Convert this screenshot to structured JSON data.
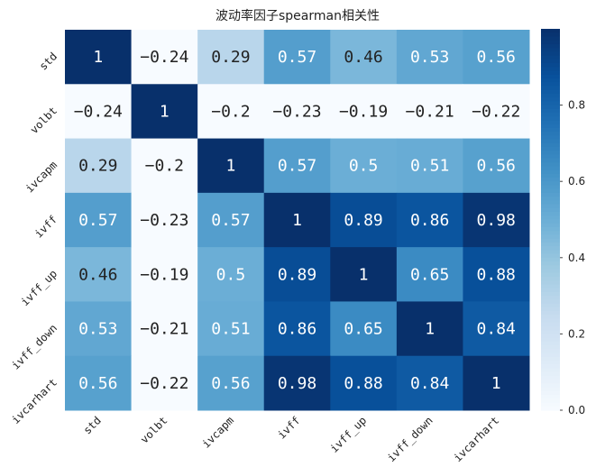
{
  "chart_data": {
    "type": "heatmap",
    "title": "波动率因子spearman相关性",
    "labels": [
      "std",
      "volbt",
      "ivcapm",
      "ivff",
      "ivff_up",
      "ivff_down",
      "ivcarhart"
    ],
    "values": [
      [
        1,
        -0.24,
        0.29,
        0.57,
        0.46,
        0.53,
        0.56
      ],
      [
        -0.24,
        1,
        -0.2,
        -0.23,
        -0.19,
        -0.21,
        -0.22
      ],
      [
        0.29,
        -0.2,
        1,
        0.57,
        0.5,
        0.51,
        0.56
      ],
      [
        0.57,
        -0.23,
        0.57,
        1,
        0.89,
        0.86,
        0.98
      ],
      [
        0.46,
        -0.19,
        0.5,
        0.89,
        1,
        0.65,
        0.88
      ],
      [
        0.53,
        -0.21,
        0.51,
        0.86,
        0.65,
        1,
        0.84
      ],
      [
        0.56,
        -0.22,
        0.56,
        0.98,
        0.88,
        0.84,
        1
      ]
    ],
    "colormap": "Blues",
    "vmin": 0,
    "vmax": 1,
    "colorbar_ticks": [
      "0.0",
      "0.2",
      "0.4",
      "0.6",
      "0.8"
    ],
    "annotated": true
  }
}
